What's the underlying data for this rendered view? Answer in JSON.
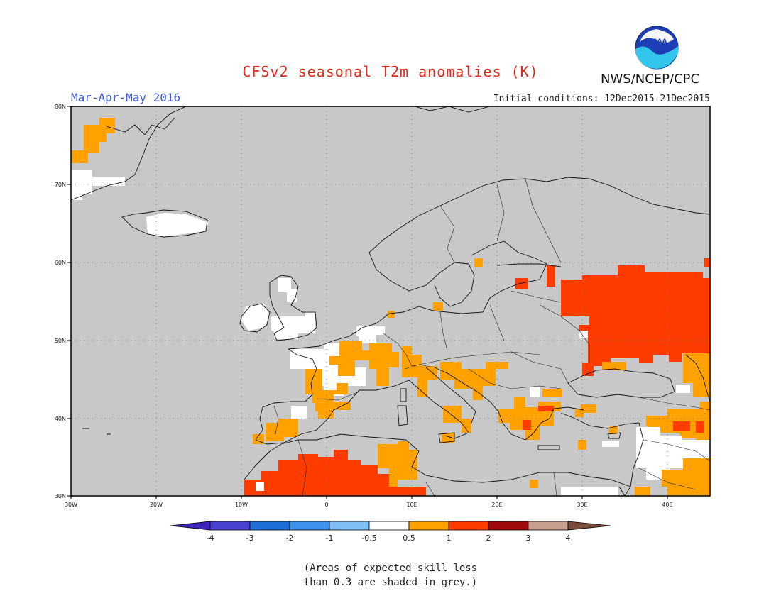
{
  "title": "CFSv2 seasonal T2m anomalies (K)",
  "period": "Mar-Apr-May 2016",
  "initial_conditions": "Initial conditions: 12Dec2015-21Dec2015",
  "agency": "NWS/NCEP/CPC",
  "logo_text": "NOAA",
  "axes": {
    "x_ticks": [
      "30W",
      "20W",
      "10W",
      "0",
      "10E",
      "20E",
      "30E",
      "40E"
    ],
    "y_ticks": [
      "80N",
      "70N",
      "60N",
      "50N",
      "40N",
      "30N"
    ],
    "lon_range": [
      -30,
      45
    ],
    "lat_range": [
      30,
      80
    ]
  },
  "colorbar": {
    "labels": [
      "-4",
      "-3",
      "-2",
      "-1",
      "-0.5",
      "0.5",
      "1",
      "2",
      "3",
      "4"
    ],
    "colors": [
      "#3d23b8",
      "#4a42d0",
      "#1f6fd6",
      "#3e92ee",
      "#80bff5",
      "#ffffff",
      "#ffa200",
      "#ff3c00",
      "#a00a0a",
      "#c8a090",
      "#7a4a3a"
    ]
  },
  "skill_note_line1": "(Areas of expected skill less",
  "skill_note_line2": "than 0.3 are shaded in grey.)",
  "anomaly_regions": [
    {
      "category": "0.5 to 1",
      "color": "#ffa200",
      "lon": [
        -30,
        -24
      ],
      "lat": [
        73,
        77
      ]
    },
    {
      "category": "0.5 to 1",
      "color": "#ffa200",
      "lon": [
        -5,
        2
      ],
      "lat": [
        43,
        47
      ]
    },
    {
      "category": "0.5 to 1",
      "color": "#ffa200",
      "lon": [
        -9,
        -5
      ],
      "lat": [
        37,
        39
      ]
    },
    {
      "category": "0.5 to 1",
      "color": "#ffa200",
      "lon": [
        8,
        12
      ],
      "lat": [
        33,
        37
      ]
    },
    {
      "category": "0.5 to 1",
      "color": "#ffa200",
      "lon": [
        20,
        26
      ],
      "lat": [
        37,
        40
      ]
    },
    {
      "category": "1 to 2",
      "color": "#ff3c00",
      "lon": [
        30,
        45
      ],
      "lat": [
        49,
        58
      ]
    },
    {
      "category": "1 to 2",
      "color": "#ff3c00",
      "lon": [
        -9,
        10
      ],
      "lat": [
        30,
        35
      ]
    },
    {
      "category": "-0.5 to 0.5",
      "color": "#ffffff",
      "lon": [
        -3,
        6
      ],
      "lat": [
        44,
        49
      ]
    },
    {
      "category": "-0.5 to 0.5",
      "color": "#ffffff",
      "lon": [
        -20,
        -14
      ],
      "lat": [
        63,
        66
      ]
    }
  ]
}
